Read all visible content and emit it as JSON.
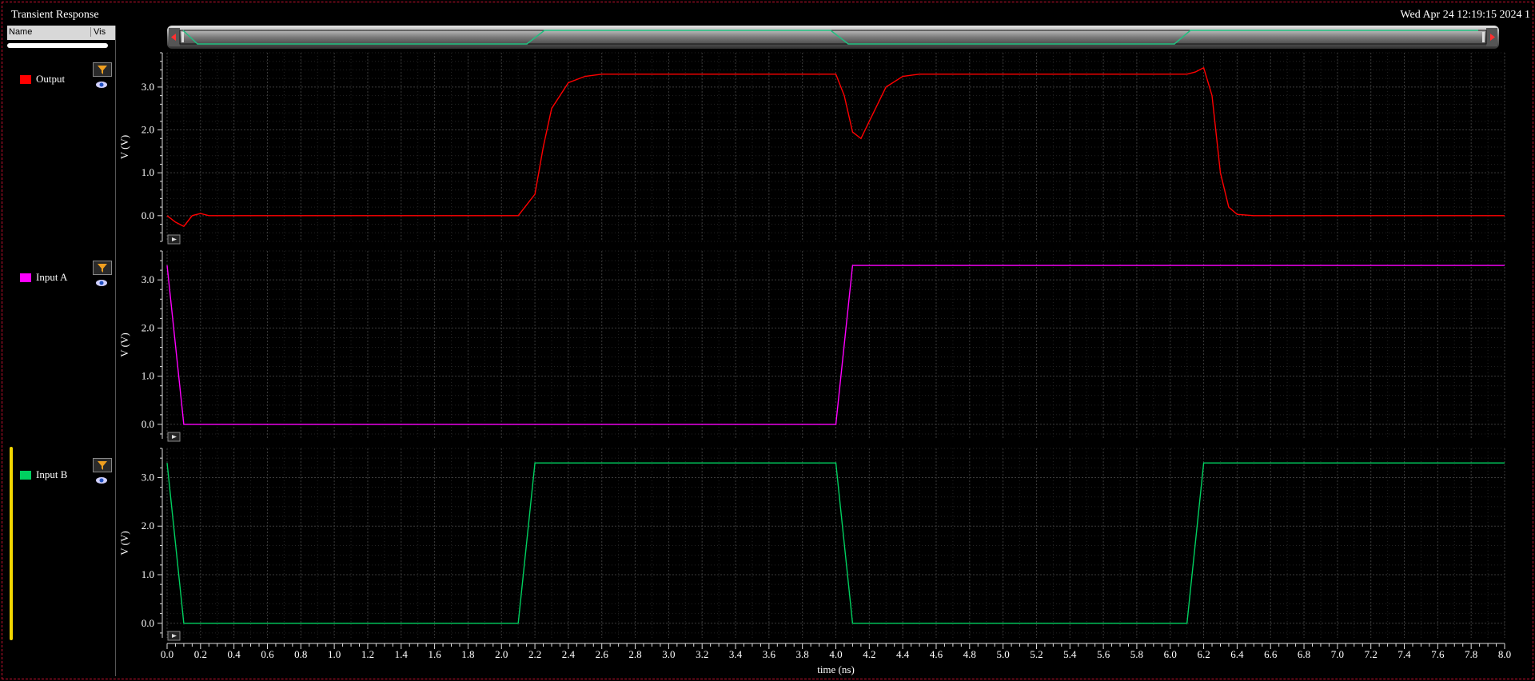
{
  "title": "Transient Response",
  "timestamp": "Wed Apr 24 12:19:15 2024   1",
  "panel": {
    "col_name": "Name",
    "col_vis": "Vis"
  },
  "traces": [
    {
      "label": "Output",
      "color": "#ff0000",
      "icon_filter": "filter-icon",
      "icon_vis": "eye-icon"
    },
    {
      "label": "Input A",
      "color": "#ff00ff",
      "icon_filter": "filter-icon",
      "icon_vis": "eye-icon"
    },
    {
      "label": "Input B",
      "color": "#00d060",
      "icon_filter": "filter-icon",
      "icon_vis": "eye-icon"
    }
  ],
  "chart_data": {
    "type": "line",
    "xlabel": "time (ns)",
    "xlim": [
      0.0,
      8.0
    ],
    "x_ticks": [
      "0.0",
      "0.2",
      "0.4",
      "0.6",
      "0.8",
      "1.0",
      "1.2",
      "1.4",
      "1.6",
      "1.8",
      "2.0",
      "2.2",
      "2.4",
      "2.6",
      "2.8",
      "3.0",
      "3.2",
      "3.4",
      "3.6",
      "3.8",
      "4.0",
      "4.2",
      "4.4",
      "4.6",
      "4.8",
      "5.0",
      "5.2",
      "5.4",
      "5.6",
      "5.8",
      "6.0",
      "6.2",
      "6.4",
      "6.6",
      "6.8",
      "7.0",
      "7.2",
      "7.4",
      "7.6",
      "7.8",
      "8.0"
    ],
    "grid": true,
    "panels": [
      {
        "name": "Output",
        "ylabel": "V (V)",
        "ylim": [
          -0.6,
          3.8
        ],
        "y_ticks": [
          "0.0",
          "1.0",
          "2.0",
          "3.0"
        ],
        "color": "#ff0000",
        "x": [
          0.0,
          0.05,
          0.1,
          0.15,
          0.2,
          0.25,
          0.3,
          2.1,
          2.2,
          2.25,
          2.3,
          2.4,
          2.5,
          2.6,
          3.9,
          4.0,
          4.05,
          4.1,
          4.15,
          4.2,
          4.3,
          4.4,
          4.5,
          6.1,
          6.15,
          6.2,
          6.25,
          6.3,
          6.35,
          6.4,
          6.5,
          8.0
        ],
        "y": [
          0.0,
          -0.15,
          -0.25,
          0.0,
          0.05,
          0.0,
          0.0,
          0.0,
          0.5,
          1.6,
          2.5,
          3.1,
          3.25,
          3.3,
          3.3,
          3.3,
          2.8,
          1.95,
          1.8,
          2.2,
          3.0,
          3.25,
          3.3,
          3.3,
          3.35,
          3.45,
          2.8,
          1.0,
          0.2,
          0.03,
          0.0,
          0.0
        ]
      },
      {
        "name": "Input A",
        "ylabel": "V (V)",
        "ylim": [
          -0.3,
          3.6
        ],
        "y_ticks": [
          "0.0",
          "1.0",
          "2.0",
          "3.0"
        ],
        "color": "#ff00ff",
        "x": [
          0.0,
          0.1,
          4.0,
          4.1,
          8.0
        ],
        "y": [
          3.3,
          0.0,
          0.0,
          3.3,
          3.3
        ]
      },
      {
        "name": "Input B",
        "ylabel": "V (V)",
        "ylim": [
          -0.3,
          3.6
        ],
        "y_ticks": [
          "0.0",
          "1.0",
          "2.0",
          "3.0"
        ],
        "color": "#00d060",
        "x": [
          0.0,
          0.1,
          2.1,
          2.2,
          4.0,
          4.1,
          6.1,
          6.2,
          8.0
        ],
        "y": [
          3.3,
          0.0,
          0.0,
          3.3,
          3.3,
          0.0,
          0.0,
          3.3,
          3.3
        ]
      }
    ]
  }
}
